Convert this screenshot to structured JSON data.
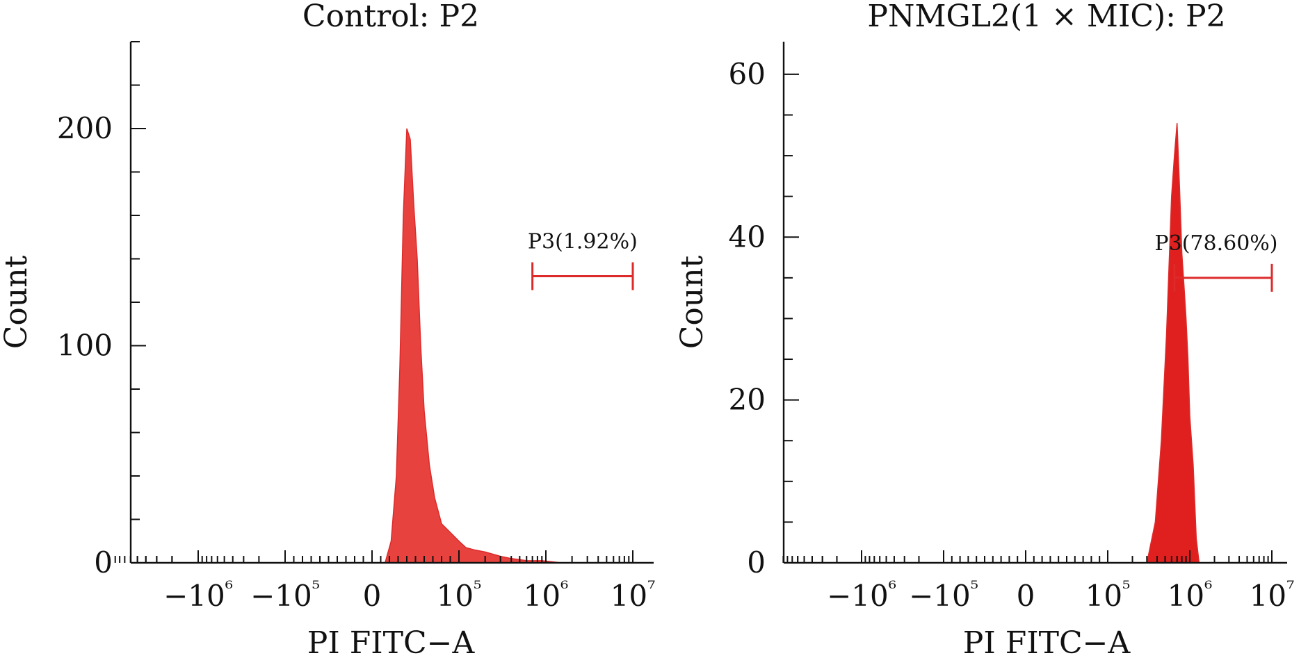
{
  "colors": {
    "histogram_fill": "#e8423f",
    "histogram_peak_fill": "#e01f1f",
    "gate_color": "#dd2a2a",
    "axis_color": "#111111"
  },
  "chart_data": [
    {
      "type": "area",
      "title": "Control: P2",
      "xlabel": "PI FITC−A",
      "ylabel": "Count",
      "x_scale": "biexponential",
      "x_tick_labels": [
        "−10⁶",
        "−10⁵",
        "0",
        "10⁵",
        "10⁶",
        "10⁷"
      ],
      "x_tick_values": [
        -1000000,
        -100000,
        0,
        100000,
        1000000,
        10000000
      ],
      "ylim": [
        0,
        240
      ],
      "y_ticks": [
        0,
        100,
        200
      ],
      "histogram": {
        "x": [
          15000,
          22000,
          28000,
          32000,
          36000,
          40000,
          44000,
          48000,
          52000,
          56000,
          60000,
          66000,
          72000,
          80000,
          90000,
          100000,
          120000,
          150000,
          200000,
          300000,
          400000,
          600000,
          900000,
          1500000
        ],
        "y": [
          0,
          10,
          40,
          90,
          160,
          200,
          195,
          165,
          140,
          100,
          70,
          45,
          30,
          18,
          14,
          10,
          7,
          6,
          5,
          3,
          2,
          1,
          1,
          0
        ]
      },
      "gate": {
        "label": "P3(1.92%)",
        "name": "P3",
        "percent": 1.92,
        "x_start": 700000,
        "x_end": 10000000,
        "y": 132
      }
    },
    {
      "type": "area",
      "title": "PNMGL2(1 × MIC): P2",
      "xlabel": "PI FITC−A",
      "ylabel": "Count",
      "x_scale": "biexponential",
      "x_tick_labels": [
        "−10⁶",
        "−10⁵",
        "0",
        "10⁵",
        "10⁶",
        "10⁷"
      ],
      "x_tick_values": [
        -1000000,
        -100000,
        0,
        100000,
        1000000,
        10000000
      ],
      "ylim": [
        0,
        64
      ],
      "y_ticks": [
        0,
        20,
        40,
        60
      ],
      "histogram": {
        "x": [
          300000,
          380000,
          450000,
          520000,
          600000,
          650000,
          700000,
          750000,
          800000,
          850000,
          900000,
          950000,
          1000000,
          1100000,
          1200000,
          1300000
        ],
        "y": [
          0,
          5,
          15,
          28,
          45,
          50,
          54,
          46,
          38,
          34,
          30,
          25,
          18,
          12,
          3,
          0
        ]
      },
      "gate": {
        "label": "P3(78.60%)",
        "name": "P3",
        "percent": 78.6,
        "x_start": 650000,
        "x_end": 10000000,
        "y": 35
      }
    }
  ]
}
